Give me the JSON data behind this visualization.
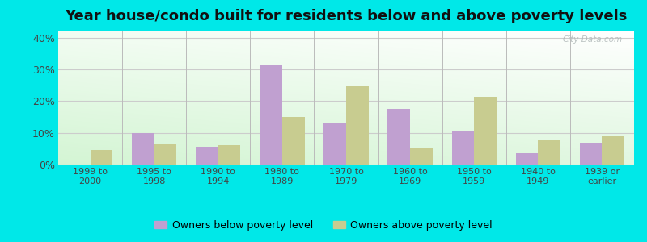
{
  "title": "Year house/condo built for residents below and above poverty levels",
  "categories": [
    "1999 to\n2000",
    "1995 to\n1998",
    "1990 to\n1994",
    "1980 to\n1989",
    "1970 to\n1979",
    "1960 to\n1969",
    "1950 to\n1959",
    "1940 to\n1949",
    "1939 or\nearlier"
  ],
  "below_poverty": [
    0,
    10,
    5.5,
    31.5,
    13,
    17.5,
    10.5,
    3.5,
    7
  ],
  "above_poverty": [
    4.5,
    6.5,
    6,
    15,
    25,
    5,
    21.5,
    8,
    9
  ],
  "below_color": "#c0a0d0",
  "above_color": "#c8cc90",
  "ylim": [
    0,
    42
  ],
  "yticks": [
    0,
    10,
    20,
    30,
    40
  ],
  "ytick_labels": [
    "0%",
    "10%",
    "20%",
    "30%",
    "40%"
  ],
  "background_outer": "#00e8e8",
  "legend_below_label": "Owners below poverty level",
  "legend_above_label": "Owners above poverty level",
  "bar_width": 0.35,
  "title_fontsize": 13,
  "watermark": "City-Data.com"
}
